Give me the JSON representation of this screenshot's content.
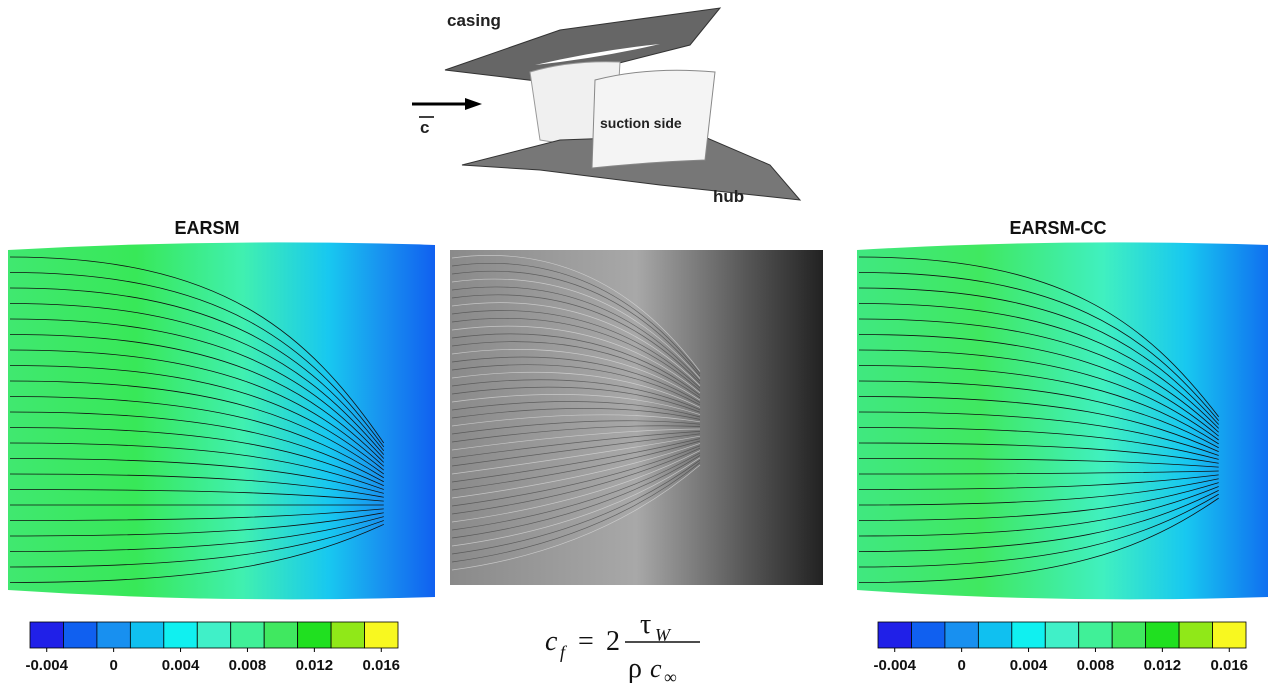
{
  "diagram": {
    "casing": "casing",
    "velocity": "c",
    "suction_side": "suction side",
    "hub": "hub"
  },
  "panels": [
    {
      "title": "EARSM"
    },
    {
      "title": "EARSM-CC"
    }
  ],
  "colorbar": {
    "bins": [
      -0.005,
      -0.003,
      -0.001,
      0.001,
      0.003,
      0.005,
      0.007,
      0.009,
      0.011,
      0.013,
      0.015,
      0.017
    ],
    "colors": [
      "#2020e8",
      "#1060f0",
      "#1890f0",
      "#10c0f0",
      "#10f0f0",
      "#40f0c8",
      "#40f098",
      "#40e860",
      "#20e020",
      "#90e818",
      "#f8f820"
    ],
    "ticks": [
      -0.004,
      0,
      0.004,
      0.008,
      0.012,
      0.016
    ]
  },
  "formula": {
    "lhs": "c",
    "lhs_sub": "f",
    "equals": "=",
    "factor": "2",
    "num": "τ",
    "num_sub": "W",
    "den_1": "ρ",
    "den_2": "c",
    "den_sub": "∞"
  }
}
